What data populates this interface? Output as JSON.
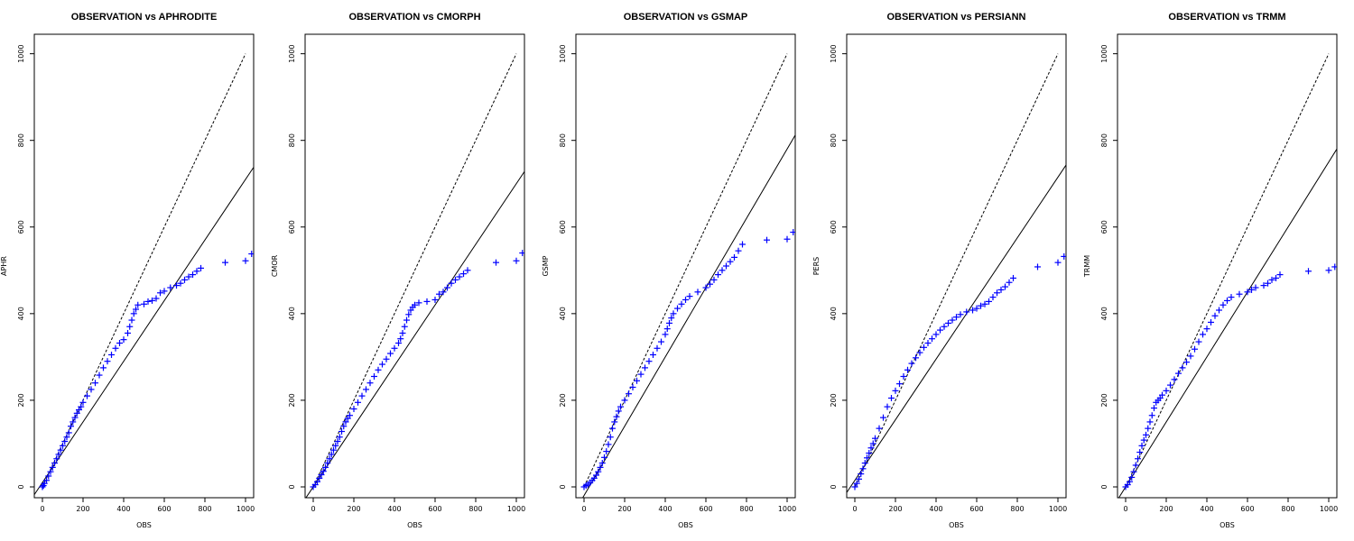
{
  "chart_data": [
    {
      "type": "scatter",
      "title": "OBSERVATION vs APHRODITE",
      "xlabel": "OBS",
      "ylabel": "APHR",
      "xlim": [
        -40,
        1040
      ],
      "ylim": [
        -25,
        1045
      ],
      "xticks": [
        0,
        200,
        400,
        600,
        800,
        1000
      ],
      "yticks": [
        0,
        200,
        400,
        600,
        800,
        1000
      ],
      "one_to_one": {
        "from": [
          0,
          0
        ],
        "to": [
          1000,
          1000
        ]
      },
      "fit_line": {
        "intercept": 10,
        "slope": 0.7
      },
      "marker": "+",
      "marker_color": "#0000ff",
      "points": [
        [
          0,
          0
        ],
        [
          5,
          3
        ],
        [
          10,
          8
        ],
        [
          20,
          15
        ],
        [
          30,
          25
        ],
        [
          40,
          35
        ],
        [
          50,
          45
        ],
        [
          60,
          55
        ],
        [
          70,
          65
        ],
        [
          80,
          75
        ],
        [
          90,
          85
        ],
        [
          100,
          95
        ],
        [
          110,
          105
        ],
        [
          120,
          115
        ],
        [
          130,
          125
        ],
        [
          140,
          140
        ],
        [
          150,
          150
        ],
        [
          160,
          160
        ],
        [
          170,
          170
        ],
        [
          180,
          178
        ],
        [
          190,
          185
        ],
        [
          200,
          195
        ],
        [
          220,
          210
        ],
        [
          240,
          225
        ],
        [
          260,
          240
        ],
        [
          280,
          258
        ],
        [
          300,
          275
        ],
        [
          320,
          290
        ],
        [
          340,
          305
        ],
        [
          360,
          320
        ],
        [
          380,
          332
        ],
        [
          400,
          340
        ],
        [
          420,
          355
        ],
        [
          430,
          370
        ],
        [
          440,
          385
        ],
        [
          450,
          400
        ],
        [
          460,
          410
        ],
        [
          470,
          420
        ],
        [
          500,
          422
        ],
        [
          520,
          428
        ],
        [
          540,
          430
        ],
        [
          560,
          435
        ],
        [
          580,
          448
        ],
        [
          600,
          452
        ],
        [
          630,
          460
        ],
        [
          660,
          465
        ],
        [
          680,
          470
        ],
        [
          700,
          478
        ],
        [
          720,
          485
        ],
        [
          740,
          490
        ],
        [
          760,
          498
        ],
        [
          780,
          505
        ],
        [
          900,
          518
        ],
        [
          1000,
          522
        ],
        [
          1030,
          538
        ]
      ]
    },
    {
      "type": "scatter",
      "title": "OBSERVATION vs CMORPH",
      "xlabel": "OBS",
      "ylabel": "CMOR",
      "xlim": [
        -40,
        1040
      ],
      "ylim": [
        -25,
        1045
      ],
      "xticks": [
        0,
        200,
        400,
        600,
        800,
        1000
      ],
      "yticks": [
        0,
        200,
        400,
        600,
        800,
        1000
      ],
      "one_to_one": {
        "from": [
          0,
          0
        ],
        "to": [
          1000,
          1000
        ]
      },
      "fit_line": {
        "intercept": 0,
        "slope": 0.7
      },
      "marker": "+",
      "marker_color": "#0000ff",
      "points": [
        [
          0,
          0
        ],
        [
          10,
          5
        ],
        [
          20,
          12
        ],
        [
          30,
          20
        ],
        [
          40,
          28
        ],
        [
          50,
          36
        ],
        [
          60,
          45
        ],
        [
          70,
          55
        ],
        [
          80,
          65
        ],
        [
          90,
          75
        ],
        [
          100,
          85
        ],
        [
          110,
          95
        ],
        [
          120,
          105
        ],
        [
          130,
          115
        ],
        [
          140,
          128
        ],
        [
          150,
          140
        ],
        [
          160,
          150
        ],
        [
          170,
          158
        ],
        [
          180,
          165
        ],
        [
          200,
          180
        ],
        [
          220,
          195
        ],
        [
          240,
          210
        ],
        [
          260,
          225
        ],
        [
          280,
          240
        ],
        [
          300,
          255
        ],
        [
          320,
          270
        ],
        [
          340,
          283
        ],
        [
          360,
          295
        ],
        [
          380,
          308
        ],
        [
          400,
          320
        ],
        [
          420,
          332
        ],
        [
          430,
          342
        ],
        [
          440,
          355
        ],
        [
          450,
          370
        ],
        [
          460,
          385
        ],
        [
          470,
          398
        ],
        [
          480,
          408
        ],
        [
          490,
          415
        ],
        [
          500,
          420
        ],
        [
          520,
          425
        ],
        [
          560,
          428
        ],
        [
          600,
          432
        ],
        [
          620,
          445
        ],
        [
          640,
          450
        ],
        [
          660,
          460
        ],
        [
          680,
          470
        ],
        [
          700,
          478
        ],
        [
          720,
          485
        ],
        [
          740,
          492
        ],
        [
          760,
          500
        ],
        [
          900,
          518
        ],
        [
          1000,
          522
        ],
        [
          1030,
          540
        ]
      ]
    },
    {
      "type": "scatter",
      "title": "OBSERVATION vs GSMAP",
      "xlabel": "OBS",
      "ylabel": "GSMP",
      "xlim": [
        -40,
        1040
      ],
      "ylim": [
        -25,
        1045
      ],
      "xticks": [
        0,
        200,
        400,
        600,
        800,
        1000
      ],
      "yticks": [
        0,
        200,
        400,
        600,
        800,
        1000
      ],
      "one_to_one": {
        "from": [
          0,
          0
        ],
        "to": [
          1000,
          1000
        ]
      },
      "fit_line": {
        "intercept": -20,
        "slope": 0.8
      },
      "marker": "+",
      "marker_color": "#0000ff",
      "points": [
        [
          0,
          0
        ],
        [
          10,
          3
        ],
        [
          20,
          6
        ],
        [
          30,
          10
        ],
        [
          40,
          15
        ],
        [
          50,
          20
        ],
        [
          60,
          27
        ],
        [
          70,
          35
        ],
        [
          80,
          45
        ],
        [
          90,
          55
        ],
        [
          100,
          68
        ],
        [
          110,
          82
        ],
        [
          120,
          98
        ],
        [
          130,
          115
        ],
        [
          140,
          135
        ],
        [
          150,
          150
        ],
        [
          160,
          162
        ],
        [
          170,
          175
        ],
        [
          180,
          185
        ],
        [
          200,
          200
        ],
        [
          220,
          215
        ],
        [
          240,
          230
        ],
        [
          260,
          245
        ],
        [
          280,
          260
        ],
        [
          300,
          275
        ],
        [
          320,
          290
        ],
        [
          340,
          305
        ],
        [
          360,
          320
        ],
        [
          380,
          335
        ],
        [
          400,
          352
        ],
        [
          410,
          365
        ],
        [
          420,
          378
        ],
        [
          430,
          390
        ],
        [
          440,
          400
        ],
        [
          460,
          412
        ],
        [
          480,
          422
        ],
        [
          500,
          432
        ],
        [
          520,
          440
        ],
        [
          560,
          450
        ],
        [
          600,
          460
        ],
        [
          620,
          468
        ],
        [
          640,
          478
        ],
        [
          660,
          490
        ],
        [
          680,
          500
        ],
        [
          700,
          510
        ],
        [
          720,
          520
        ],
        [
          740,
          530
        ],
        [
          760,
          545
        ],
        [
          780,
          560
        ],
        [
          900,
          570
        ],
        [
          1000,
          572
        ],
        [
          1030,
          588
        ]
      ]
    },
    {
      "type": "scatter",
      "title": "OBSERVATION vs PERSIANN",
      "xlabel": "OBS",
      "ylabel": "PERS",
      "xlim": [
        -40,
        1040
      ],
      "ylim": [
        -25,
        1045
      ],
      "xticks": [
        0,
        200,
        400,
        600,
        800,
        1000
      ],
      "yticks": [
        0,
        200,
        400,
        600,
        800,
        1000
      ],
      "one_to_one": {
        "from": [
          0,
          0
        ],
        "to": [
          1000,
          1000
        ]
      },
      "fit_line": {
        "intercept": 15,
        "slope": 0.7
      },
      "marker": "+",
      "marker_color": "#0000ff",
      "points": [
        [
          0,
          0
        ],
        [
          10,
          8
        ],
        [
          20,
          18
        ],
        [
          30,
          30
        ],
        [
          40,
          42
        ],
        [
          50,
          55
        ],
        [
          60,
          67
        ],
        [
          70,
          78
        ],
        [
          80,
          90
        ],
        [
          90,
          100
        ],
        [
          100,
          112
        ],
        [
          120,
          135
        ],
        [
          140,
          160
        ],
        [
          160,
          185
        ],
        [
          180,
          205
        ],
        [
          200,
          222
        ],
        [
          220,
          238
        ],
        [
          240,
          255
        ],
        [
          260,
          270
        ],
        [
          280,
          285
        ],
        [
          300,
          298
        ],
        [
          320,
          310
        ],
        [
          340,
          322
        ],
        [
          360,
          332
        ],
        [
          380,
          342
        ],
        [
          400,
          352
        ],
        [
          420,
          362
        ],
        [
          440,
          370
        ],
        [
          460,
          378
        ],
        [
          480,
          385
        ],
        [
          500,
          392
        ],
        [
          520,
          398
        ],
        [
          550,
          404
        ],
        [
          580,
          408
        ],
        [
          600,
          412
        ],
        [
          620,
          418
        ],
        [
          640,
          422
        ],
        [
          660,
          428
        ],
        [
          680,
          438
        ],
        [
          700,
          448
        ],
        [
          720,
          455
        ],
        [
          740,
          462
        ],
        [
          760,
          472
        ],
        [
          780,
          482
        ],
        [
          900,
          508
        ],
        [
          1000,
          518
        ],
        [
          1030,
          532
        ]
      ]
    },
    {
      "type": "scatter",
      "title": "OBSERVATION vs TRMM",
      "xlabel": "OBS",
      "ylabel": "TRMM",
      "xlim": [
        -40,
        1040
      ],
      "ylim": [
        -25,
        1045
      ],
      "xticks": [
        0,
        200,
        400,
        600,
        800,
        1000
      ],
      "yticks": [
        0,
        200,
        400,
        600,
        800,
        1000
      ],
      "one_to_one": {
        "from": [
          0,
          0
        ],
        "to": [
          1000,
          1000
        ]
      },
      "fit_line": {
        "intercept": 0,
        "slope": 0.75
      },
      "marker": "+",
      "marker_color": "#0000ff",
      "points": [
        [
          0,
          0
        ],
        [
          10,
          5
        ],
        [
          20,
          12
        ],
        [
          30,
          22
        ],
        [
          40,
          35
        ],
        [
          50,
          50
        ],
        [
          60,
          65
        ],
        [
          70,
          80
        ],
        [
          80,
          95
        ],
        [
          90,
          108
        ],
        [
          100,
          120
        ],
        [
          110,
          135
        ],
        [
          120,
          150
        ],
        [
          130,
          165
        ],
        [
          140,
          182
        ],
        [
          150,
          195
        ],
        [
          160,
          200
        ],
        [
          170,
          205
        ],
        [
          180,
          212
        ],
        [
          200,
          222
        ],
        [
          220,
          235
        ],
        [
          240,
          248
        ],
        [
          260,
          262
        ],
        [
          280,
          275
        ],
        [
          300,
          288
        ],
        [
          320,
          302
        ],
        [
          340,
          318
        ],
        [
          360,
          335
        ],
        [
          380,
          352
        ],
        [
          400,
          365
        ],
        [
          420,
          380
        ],
        [
          440,
          395
        ],
        [
          460,
          408
        ],
        [
          480,
          420
        ],
        [
          500,
          430
        ],
        [
          520,
          438
        ],
        [
          560,
          445
        ],
        [
          600,
          450
        ],
        [
          620,
          455
        ],
        [
          640,
          460
        ],
        [
          680,
          465
        ],
        [
          700,
          470
        ],
        [
          720,
          478
        ],
        [
          740,
          482
        ],
        [
          760,
          490
        ],
        [
          900,
          498
        ],
        [
          1000,
          500
        ],
        [
          1030,
          508
        ]
      ]
    }
  ]
}
